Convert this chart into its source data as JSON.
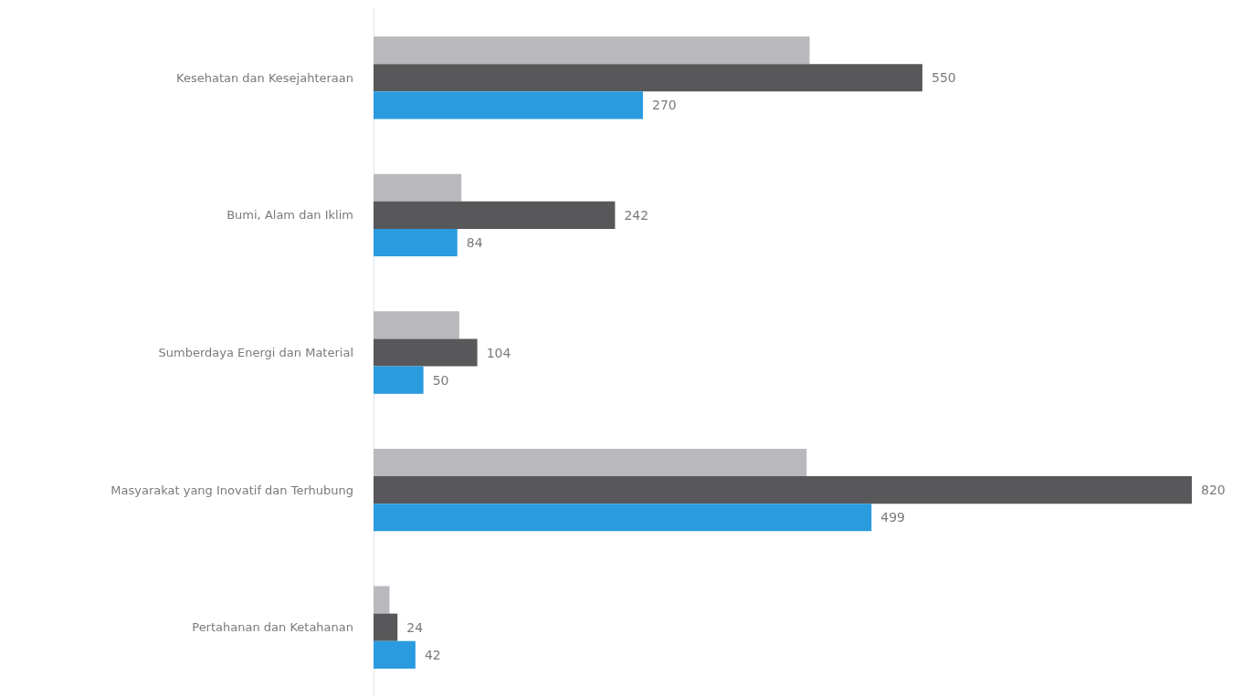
{
  "chart_data": {
    "type": "bar",
    "orientation": "horizontal",
    "categories": [
      "Kesehatan dan Kesejahteraan",
      "Bumi, Alam dan Iklim",
      "Sumberdaya Energi dan Material",
      "Masyarakat yang Inovatif dan Terhubung",
      "Pertahanan dan Ketahanan"
    ],
    "series": [
      {
        "color": "#b9b9bd",
        "values": [
          437,
          88,
          86,
          434,
          16
        ]
      },
      {
        "color": "#58585a",
        "values": [
          550,
          242,
          104,
          820,
          24
        ],
        "value_labels": [
          "550",
          "242",
          "104",
          "820",
          "24"
        ]
      },
      {
        "color": "#2b9be0",
        "values": [
          270,
          84,
          50,
          499,
          42
        ],
        "value_labels": [
          "270",
          "84",
          "50",
          "499",
          "42"
        ]
      }
    ],
    "grid": false
  }
}
